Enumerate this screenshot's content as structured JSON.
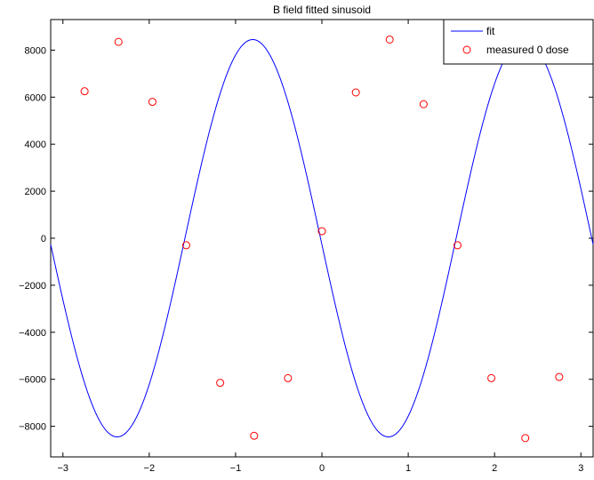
{
  "chart_data": {
    "type": "line",
    "title": "B field fitted sinusoid",
    "xlabel": "",
    "ylabel": "",
    "xlim": [
      -3.14159,
      3.14159
    ],
    "ylim": [
      -9300,
      9300
    ],
    "grid": false,
    "legend_position": "top-right",
    "x_ticks": [
      -3,
      -2,
      -1,
      0,
      1,
      2,
      3
    ],
    "x_tick_labels": [
      "−3",
      "−2",
      "−1",
      "0",
      "1",
      "2",
      "3"
    ],
    "y_ticks": [
      -8000,
      -6000,
      -4000,
      -2000,
      0,
      2000,
      4000,
      6000,
      8000
    ],
    "y_tick_labels": [
      "−8000",
      "−6000",
      "−4000",
      "−2000",
      "0",
      "2000",
      "4000",
      "6000",
      "8000"
    ],
    "series": [
      {
        "name": "fit",
        "kind": "line",
        "color": "#0000ff",
        "function": "sinusoid",
        "amplitude": 8450,
        "angular_frequency": 2,
        "phase": -3.11,
        "x_range": [
          -3.14159,
          3.14159
        ]
      },
      {
        "name": "measured 0 dose",
        "kind": "scatter",
        "marker": "circle",
        "color": "#ff0000",
        "x": [
          -2.749,
          -2.356,
          -1.963,
          -1.571,
          -1.178,
          -0.785,
          -0.393,
          0.0,
          0.393,
          0.785,
          1.178,
          1.571,
          1.963,
          2.356,
          2.749
        ],
        "y": [
          6250,
          8350,
          5800,
          -300,
          -6150,
          -8400,
          -5950,
          300,
          6200,
          8450,
          5700,
          -300,
          -5950,
          -8500,
          -5900
        ]
      }
    ]
  }
}
